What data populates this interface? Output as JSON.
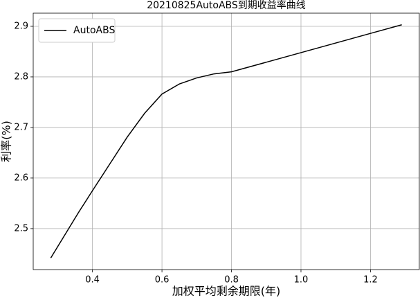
{
  "chart_data": {
    "type": "line",
    "title": "20210825AutoABS到期收益率曲线",
    "x_label": "加权平均剩余期限(年)",
    "y_label": "利率(%)",
    "x": [
      0.28,
      0.32,
      0.36,
      0.4,
      0.45,
      0.5,
      0.55,
      0.6,
      0.65,
      0.7,
      0.75,
      0.8,
      0.9,
      1.0,
      1.1,
      1.2,
      1.29
    ],
    "series": [
      {
        "name": "AutoABS",
        "color": "#000000",
        "values": [
          2.442,
          2.487,
          2.532,
          2.575,
          2.628,
          2.681,
          2.728,
          2.766,
          2.786,
          2.798,
          2.806,
          2.81,
          2.829,
          2.848,
          2.867,
          2.886,
          2.903
        ]
      }
    ],
    "xlim": [
      0.2295,
      1.3405
    ],
    "ylim": [
      2.419,
      2.926
    ],
    "xticks": [
      0.4,
      0.6,
      0.8,
      {
        "value": 1,
        "label": "1.0"
      },
      1.2
    ],
    "yticks": [
      2.5,
      2.6,
      2.7,
      2.8,
      2.9
    ],
    "grid": true,
    "legend": "upper-left"
  }
}
